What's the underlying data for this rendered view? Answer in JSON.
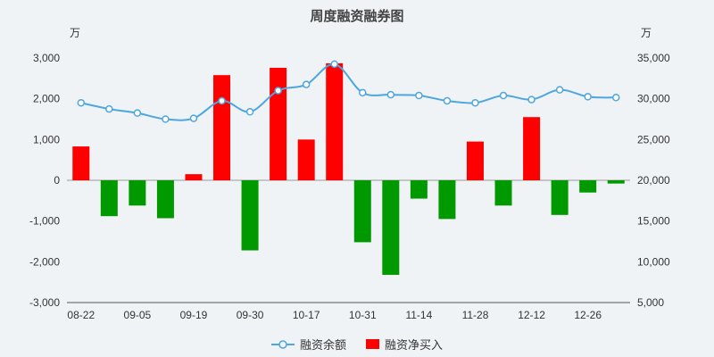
{
  "colors": {
    "background": "#f0f3f5",
    "axis_text": "#333333",
    "title_text": "#444444",
    "zero_line": "#999999",
    "axis_line": "#555555"
  },
  "chart_data": {
    "type": "combo",
    "title": "周度融资融券图",
    "legend_position": "bottom",
    "x_tick_labels": [
      "08-22",
      "09-05",
      "09-19",
      "09-30",
      "10-17",
      "10-31",
      "11-14",
      "11-28",
      "12-12",
      "12-26"
    ],
    "x_tick_every": 2,
    "n_points": 20,
    "left_axis": {
      "unit": "万",
      "min": -3000,
      "max": 3000,
      "step": 1000,
      "tick_labels": [
        "3,000",
        "2,000",
        "1,000",
        "0",
        "-1,000",
        "-2,000",
        "-3,000"
      ]
    },
    "right_axis": {
      "unit": "万",
      "min": 5000,
      "max": 35000,
      "step": 5000,
      "tick_labels": [
        "35,000",
        "30,000",
        "25,000",
        "20,000",
        "15,000",
        "10,000",
        "5,000"
      ]
    },
    "series": [
      {
        "name": "融资余额",
        "type": "line",
        "axis": "right",
        "color": "#4ea6e0",
        "marker": "hollow-circle",
        "values": [
          29500,
          28750,
          28250,
          27500,
          27600,
          29750,
          28400,
          31000,
          31750,
          34250,
          30750,
          30500,
          30400,
          29750,
          29500,
          30400,
          29900,
          31100,
          30250,
          30150
        ]
      },
      {
        "name": "融资净买入",
        "type": "bar",
        "axis": "left",
        "color_positive": "#ff0000",
        "color_negative": "#009900",
        "values": [
          830,
          -880,
          -620,
          -930,
          150,
          2580,
          -1720,
          2760,
          1000,
          2870,
          -1520,
          -2320,
          -450,
          -950,
          950,
          -620,
          1550,
          -850,
          -300,
          -80
        ]
      }
    ]
  }
}
